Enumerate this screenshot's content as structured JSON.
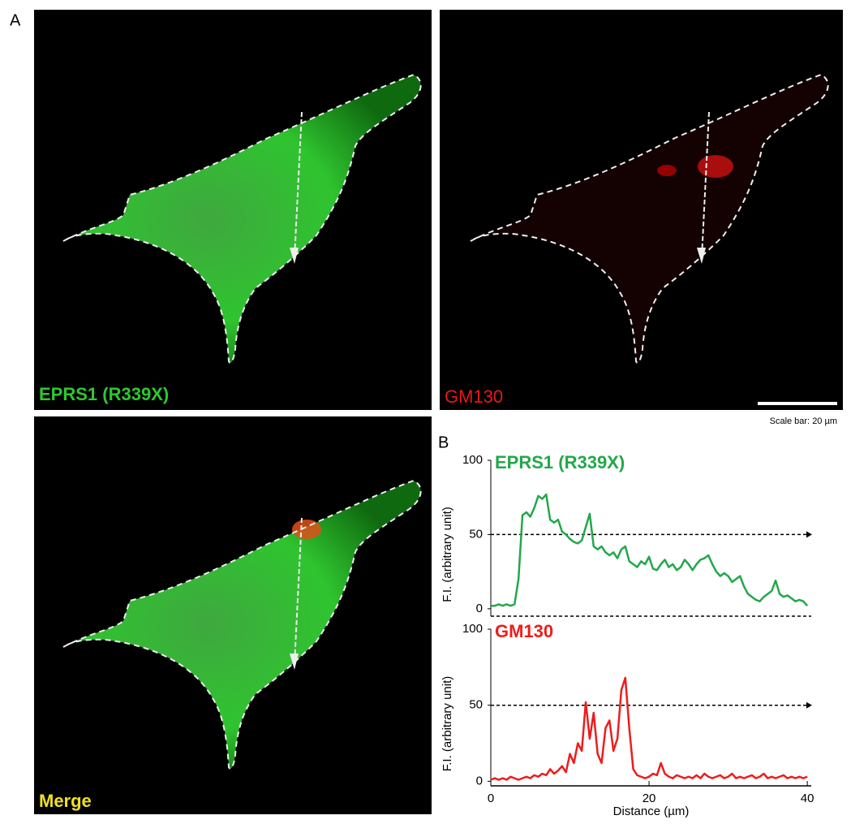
{
  "panel_labels": [
    "A",
    "B"
  ],
  "images": [
    {
      "label": "EPRS1 (R339X)"
    },
    {
      "label": "GM130"
    },
    {
      "label": "Merge"
    }
  ],
  "scale_bar": "Scale bar: 20 µm",
  "chart_data": [
    {
      "type": "line",
      "title": "EPRS1 (R339X)",
      "ylabel": "F.I. (arbitrary unit)",
      "x": [
        0,
        0.5,
        1,
        1.5,
        2,
        2.5,
        3,
        3.5,
        4,
        4.5,
        5,
        5.5,
        6,
        6.5,
        7,
        7.5,
        8,
        8.5,
        9,
        9.5,
        10,
        10.5,
        11,
        11.5,
        12,
        12.5,
        13,
        13.5,
        14,
        14.5,
        15,
        15.5,
        16,
        16.5,
        17,
        17.5,
        18,
        18.5,
        19,
        19.5,
        20,
        20.5,
        21,
        21.5,
        22,
        22.5,
        23,
        23.5,
        24,
        24.5,
        25,
        25.5,
        26,
        26.5,
        27,
        27.5,
        28,
        28.5,
        29,
        29.5,
        30,
        30.5,
        31,
        31.5,
        32,
        32.5,
        33,
        33.5,
        34,
        34.5,
        35,
        35.5,
        36,
        36.5,
        37,
        37.5,
        38,
        38.5,
        39,
        39.5,
        40
      ],
      "series": [
        {
          "name": "EPRS1 (R339X)",
          "color": "#22a84a",
          "values": [
            2,
            2,
            3,
            2,
            3,
            2,
            3,
            20,
            63,
            65,
            62,
            68,
            76,
            74,
            77,
            60,
            58,
            60,
            52,
            50,
            47,
            45,
            44,
            46,
            55,
            64,
            42,
            40,
            42,
            38,
            36,
            38,
            34,
            40,
            42,
            32,
            30,
            28,
            32,
            30,
            35,
            27,
            26,
            30,
            33,
            28,
            30,
            26,
            28,
            33,
            30,
            26,
            30,
            33,
            34,
            36,
            30,
            25,
            22,
            24,
            22,
            18,
            20,
            22,
            15,
            10,
            8,
            6,
            5,
            8,
            10,
            12,
            19,
            10,
            8,
            9,
            7,
            5,
            6,
            5,
            2
          ]
        }
      ],
      "reference_line": 50,
      "xlim": [
        0,
        40.5
      ],
      "ylim": [
        -5,
        100
      ],
      "yticks": [
        0,
        50,
        100
      ]
    },
    {
      "type": "line",
      "title": "GM130",
      "ylabel": "F.I. (arbitrary unit)",
      "xlabel": "Distance (µm)",
      "x": [
        0,
        0.5,
        1,
        1.5,
        2,
        2.5,
        3,
        3.5,
        4,
        4.5,
        5,
        5.5,
        6,
        6.5,
        7,
        7.5,
        8,
        8.5,
        9,
        9.5,
        10,
        10.5,
        11,
        11.5,
        12,
        12.5,
        13,
        13.5,
        14,
        14.5,
        15,
        15.5,
        16,
        16.5,
        17,
        17.5,
        18,
        18.5,
        19,
        19.5,
        20,
        20.5,
        21,
        21.5,
        22,
        22.5,
        23,
        23.5,
        24,
        24.5,
        25,
        25.5,
        26,
        26.5,
        27,
        27.5,
        28,
        28.5,
        29,
        29.5,
        30,
        30.5,
        31,
        31.5,
        32,
        32.5,
        33,
        33.5,
        34,
        34.5,
        35,
        35.5,
        36,
        36.5,
        37,
        37.5,
        38,
        38.5,
        39,
        39.5,
        40
      ],
      "series": [
        {
          "name": "GM130",
          "color": "#ee1c1c",
          "values": [
            1,
            2,
            1,
            2,
            1,
            3,
            2,
            1,
            2,
            3,
            2,
            4,
            3,
            5,
            4,
            8,
            5,
            7,
            10,
            6,
            18,
            12,
            25,
            20,
            52,
            28,
            45,
            18,
            12,
            35,
            40,
            20,
            28,
            60,
            68,
            35,
            8,
            4,
            3,
            2,
            3,
            5,
            4,
            12,
            5,
            3,
            2,
            4,
            3,
            2,
            3,
            2,
            4,
            2,
            5,
            3,
            2,
            3,
            4,
            2,
            3,
            5,
            2,
            3,
            2,
            3,
            4,
            2,
            3,
            5,
            2,
            3,
            2,
            3,
            4,
            2,
            3,
            2,
            3,
            2,
            3
          ]
        }
      ],
      "reference_line": 50,
      "xlim": [
        0,
        40.5
      ],
      "ylim": [
        -3,
        100
      ],
      "yticks": [
        0,
        50,
        100
      ],
      "xticks": [
        0,
        20,
        40
      ]
    }
  ]
}
